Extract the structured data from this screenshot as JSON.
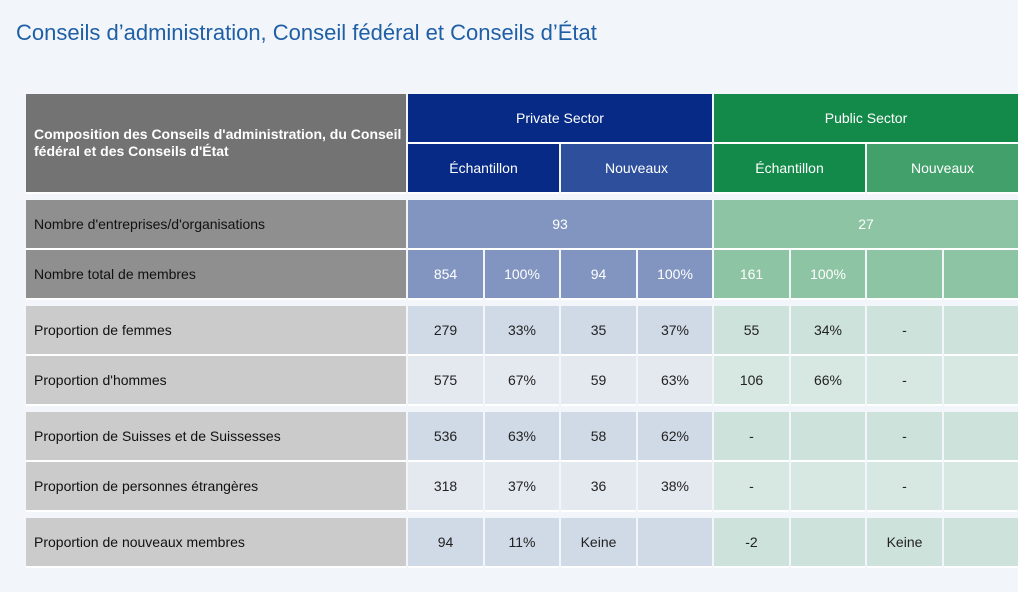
{
  "title": "Conseils d’administration, Conseil fédéral et Conseils d’État",
  "table": {
    "corner_label": "Composition des Conseils d'administration, du Conseil fédéral et des Conseils d'État",
    "private_sector": "Private Sector",
    "public_sector": "Public Sector",
    "sub_headers": [
      "Échantillon",
      "Nouveaux",
      "Échantillon",
      "Nouveaux"
    ],
    "row_companies": {
      "label": "Nombre d'entreprises/d'organisations",
      "private": "93",
      "public": "27"
    },
    "rows": [
      {
        "label": "Nombre total de membres",
        "cells": [
          "854",
          "100%",
          "94",
          "100%",
          "161",
          "100%",
          "",
          ""
        ]
      },
      {
        "label": "Proportion de femmes",
        "cells": [
          "279",
          "33%",
          "35",
          "37%",
          "55",
          "34%",
          "-",
          ""
        ]
      },
      {
        "label": "Proportion d'hommes",
        "cells": [
          "575",
          "67%",
          "59",
          "63%",
          "106",
          "66%",
          "-",
          ""
        ]
      },
      {
        "label": "Proportion de Suisses et de Suissesses",
        "cells": [
          "536",
          "63%",
          "58",
          "62%",
          "-",
          "",
          "-",
          ""
        ]
      },
      {
        "label": "Proportion de personnes étrangères",
        "cells": [
          "318",
          "37%",
          "36",
          "38%",
          "-",
          "",
          "-",
          ""
        ]
      },
      {
        "label": "Proportion de nouveaux membres",
        "cells": [
          "94",
          "11%",
          "Keine",
          "",
          "-2",
          "",
          "Keine",
          ""
        ]
      }
    ]
  },
  "colors": {
    "private_dark": "#062a86",
    "public_dark": "#138a49",
    "title": "#1f5fa6"
  }
}
